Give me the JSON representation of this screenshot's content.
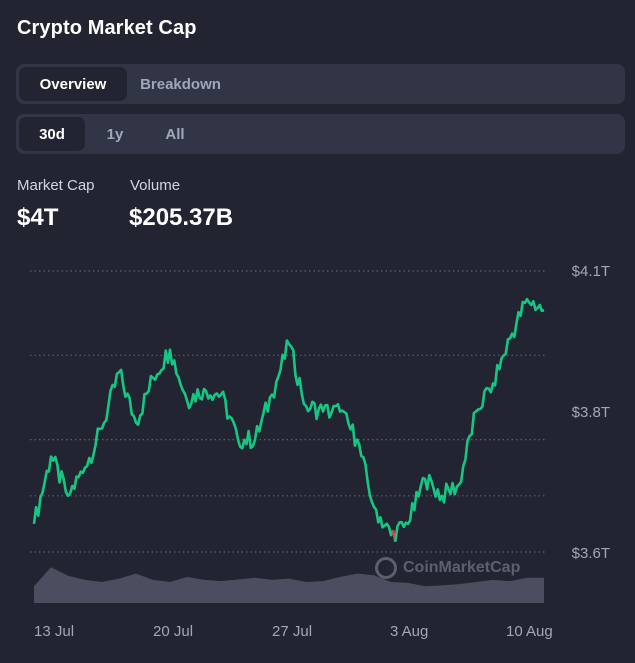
{
  "header": {
    "title": "Crypto Market Cap"
  },
  "tabs": [
    {
      "label": "Overview",
      "active": true
    },
    {
      "label": "Breakdown",
      "active": false
    }
  ],
  "ranges": [
    {
      "label": "30d",
      "active": true
    },
    {
      "label": "1y",
      "active": false
    },
    {
      "label": "All",
      "active": false
    }
  ],
  "stats": {
    "market_cap_label": "Market Cap",
    "market_cap_value": "$4T",
    "volume_label": "Volume",
    "volume_value": "$205.37B"
  },
  "watermark": "CoinMarketCap",
  "colors": {
    "up": "#16c784",
    "down": "#ea3943",
    "background": "#222531",
    "panel": "#323546"
  },
  "chart_data": {
    "type": "line",
    "title": "",
    "x_tick_labels": [
      "13 Jul",
      "20 Jul",
      "27 Jul",
      "3 Aug",
      "10 Aug"
    ],
    "y_tick_labels": [
      "$4.1T",
      "$3.8T",
      "$3.6T"
    ],
    "ylim": [
      3.6,
      4.1
    ],
    "grid": "dotted horizontal",
    "x": [
      "12 Jul",
      "13 Jul",
      "14 Jul",
      "15 Jul",
      "16 Jul",
      "17 Jul",
      "18 Jul",
      "19 Jul",
      "20 Jul",
      "21 Jul",
      "22 Jul",
      "23 Jul",
      "24 Jul",
      "25 Jul",
      "26 Jul",
      "27 Jul",
      "28 Jul",
      "29 Jul",
      "30 Jul",
      "31 Jul",
      "1 Aug",
      "2 Aug",
      "3 Aug",
      "4 Aug",
      "5 Aug",
      "6 Aug",
      "7 Aug",
      "8 Aug",
      "9 Aug",
      "10 Aug",
      "11 Aug"
    ],
    "market_cap": [
      3.65,
      3.77,
      3.7,
      3.75,
      3.82,
      3.92,
      3.83,
      3.91,
      3.96,
      3.87,
      3.89,
      3.88,
      3.8,
      3.8,
      3.88,
      3.97,
      3.86,
      3.85,
      3.85,
      3.8,
      3.68,
      3.63,
      3.65,
      3.73,
      3.7,
      3.72,
      3.85,
      3.9,
      3.98,
      4.05,
      4.03
    ],
    "volume_relative": [
      0.4,
      0.85,
      0.65,
      0.55,
      0.5,
      0.58,
      0.7,
      0.55,
      0.5,
      0.62,
      0.55,
      0.52,
      0.56,
      0.6,
      0.55,
      0.58,
      0.5,
      0.52,
      0.62,
      0.7,
      0.66,
      0.5,
      0.48,
      0.4,
      0.42,
      0.45,
      0.5,
      0.55,
      0.52,
      0.6,
      0.6
    ]
  }
}
